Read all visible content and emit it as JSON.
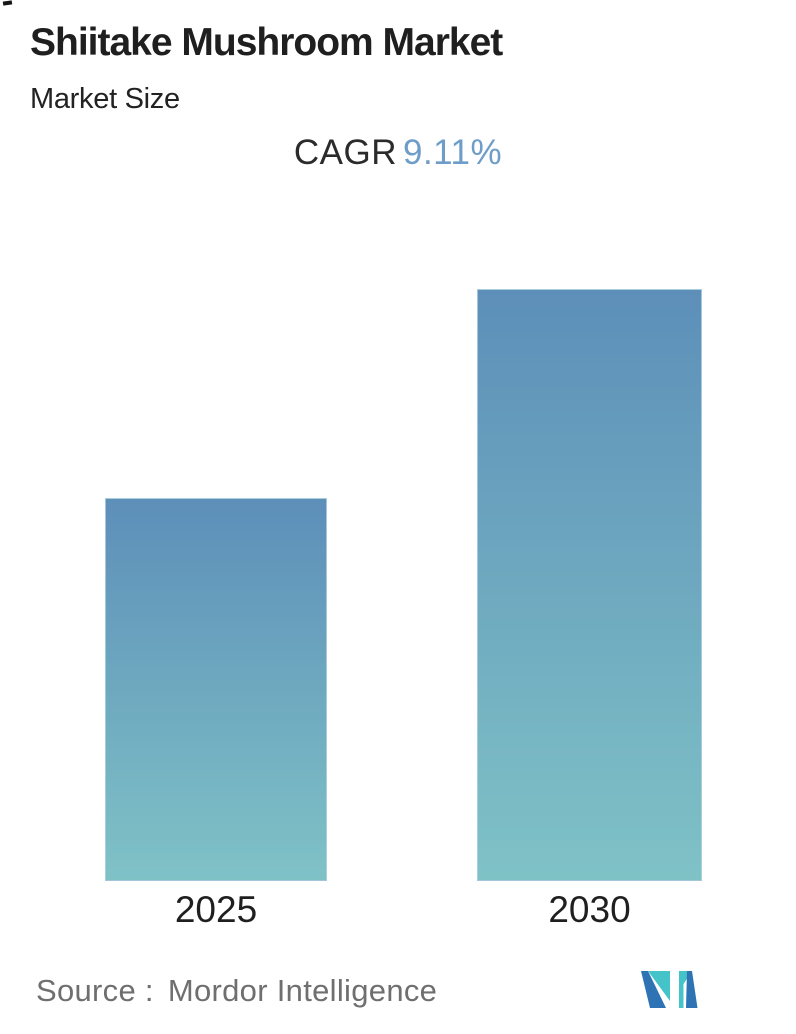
{
  "header": {
    "title": "Shiitake Mushroom Market",
    "subtitle": "Market Size"
  },
  "cagr": {
    "label": "CAGR",
    "value": "9.11%"
  },
  "chart_data": {
    "type": "bar",
    "title": "Shiitake Mushroom Market",
    "subtitle": "Market Size",
    "categories": [
      "2025",
      "2030"
    ],
    "series": [
      {
        "name": "Market Size",
        "values": [
          1.0,
          1.546
        ]
      }
    ],
    "value_axis": "none shown; bar heights are relative, 2030 = 2025 x (1 + 0.0911)^5",
    "annotations": [
      "CAGR 9.11%"
    ],
    "legend_position": "none",
    "grid": false,
    "bar_gradient_top": "#5d8fb9",
    "bar_gradient_bottom": "#7fc2c6"
  },
  "footer": {
    "source_label": "Source :",
    "source_value": "Mordor Intelligence",
    "logo": "mordor-intelligence-logo"
  },
  "colors": {
    "title_text": "#1f1f1f",
    "subtitle_text": "#222222",
    "cagr_label": "#2b2b2b",
    "cagr_value": "#6d9dc8",
    "bar_top": "#5d8fb9",
    "bar_bottom": "#7fc2c6",
    "category_label": "#1f1f1f",
    "source_text": "#6f6f6f",
    "logo_blue": "#2e74b4",
    "logo_teal": "#44c3c9",
    "background": "#ffffff"
  }
}
